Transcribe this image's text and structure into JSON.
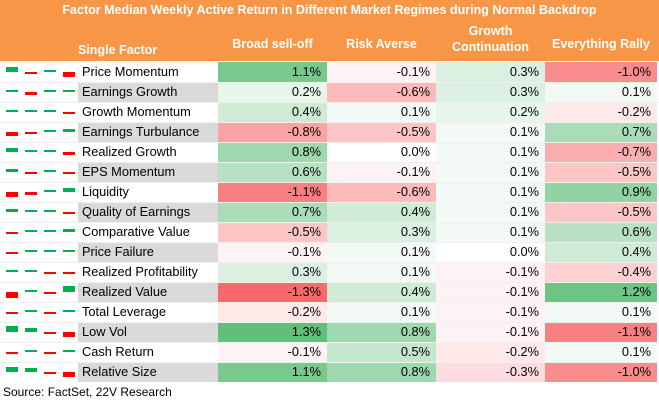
{
  "title": "Factor Median Weekly Active Return in Different Market Regimes during Normal Backdrop",
  "source": "Source: FactSet, 22V Research",
  "chart_data": {
    "type": "table",
    "factor_header": "Single Factor",
    "columns": [
      "Broad sell-off",
      "Risk Averse",
      "Growth Continuation",
      "Everything Rally"
    ],
    "rows": [
      {
        "factor": "Price Momentum",
        "values": [
          1.1,
          -0.1,
          0.3,
          -1.0
        ],
        "labels": [
          "1.1%",
          "-0.1%",
          "0.3%",
          "-1.0%"
        ]
      },
      {
        "factor": "Earnings Growth",
        "values": [
          0.2,
          -0.6,
          0.3,
          0.1
        ],
        "labels": [
          "0.2%",
          "-0.6%",
          "0.3%",
          "0.1%"
        ]
      },
      {
        "factor": "Growth Momentum",
        "values": [
          0.4,
          0.1,
          0.2,
          -0.2
        ],
        "labels": [
          "0.4%",
          "0.1%",
          "0.2%",
          "-0.2%"
        ]
      },
      {
        "factor": "Earnings Turbulance",
        "values": [
          -0.8,
          -0.5,
          0.1,
          0.7
        ],
        "labels": [
          "-0.8%",
          "-0.5%",
          "0.1%",
          "0.7%"
        ]
      },
      {
        "factor": "Realized Growth",
        "values": [
          0.8,
          0.0,
          0.1,
          -0.7
        ],
        "labels": [
          "0.8%",
          "0.0%",
          "0.1%",
          "-0.7%"
        ]
      },
      {
        "factor": "EPS Momentum",
        "values": [
          0.6,
          -0.1,
          0.1,
          -0.5
        ],
        "labels": [
          "0.6%",
          "-0.1%",
          "0.1%",
          "-0.5%"
        ]
      },
      {
        "factor": "Liquidity",
        "values": [
          -1.1,
          -0.6,
          0.1,
          0.9
        ],
        "labels": [
          "-1.1%",
          "-0.6%",
          "0.1%",
          "0.9%"
        ]
      },
      {
        "factor": "Quality of Earnings",
        "values": [
          0.7,
          0.4,
          0.1,
          -0.5
        ],
        "labels": [
          "0.7%",
          "0.4%",
          "0.1%",
          "-0.5%"
        ]
      },
      {
        "factor": "Comparative Value",
        "values": [
          -0.5,
          0.3,
          0.1,
          0.6
        ],
        "labels": [
          "-0.5%",
          "0.3%",
          "0.1%",
          "0.6%"
        ]
      },
      {
        "factor": "Price Failure",
        "values": [
          -0.1,
          0.1,
          0.0,
          0.4
        ],
        "labels": [
          "-0.1%",
          "0.1%",
          "0.0%",
          "0.4%"
        ]
      },
      {
        "factor": "Realized Profitability",
        "values": [
          0.3,
          0.1,
          -0.1,
          -0.4
        ],
        "labels": [
          "0.3%",
          "0.1%",
          "-0.1%",
          "-0.4%"
        ]
      },
      {
        "factor": "Realized Value",
        "values": [
          -1.3,
          0.4,
          -0.1,
          1.2
        ],
        "labels": [
          "-1.3%",
          "0.4%",
          "-0.1%",
          "1.2%"
        ]
      },
      {
        "factor": "Total Leverage",
        "values": [
          -0.2,
          0.1,
          -0.1,
          0.1
        ],
        "labels": [
          "-0.2%",
          "0.1%",
          "-0.1%",
          "0.1%"
        ]
      },
      {
        "factor": "Low Vol",
        "values": [
          1.3,
          0.8,
          -0.1,
          -1.1
        ],
        "labels": [
          "1.3%",
          "0.8%",
          "-0.1%",
          "-1.1%"
        ]
      },
      {
        "factor": "Cash Return",
        "values": [
          -0.1,
          0.5,
          -0.2,
          0.1
        ],
        "labels": [
          "-0.1%",
          "0.5%",
          "-0.2%",
          "0.1%"
        ]
      },
      {
        "factor": "Relative Size",
        "values": [
          1.1,
          0.8,
          -0.3,
          -1.0
        ],
        "labels": [
          "1.1%",
          "0.8%",
          "-0.3%",
          "-1.0%"
        ]
      }
    ],
    "color_scale": {
      "positive": "#63be7b",
      "negative": "#f8696b",
      "neutral": "#ffffff"
    },
    "sparkline_colors": {
      "positive": "#00b050",
      "negative": "#ff0000"
    },
    "header_color": "#f79646"
  }
}
